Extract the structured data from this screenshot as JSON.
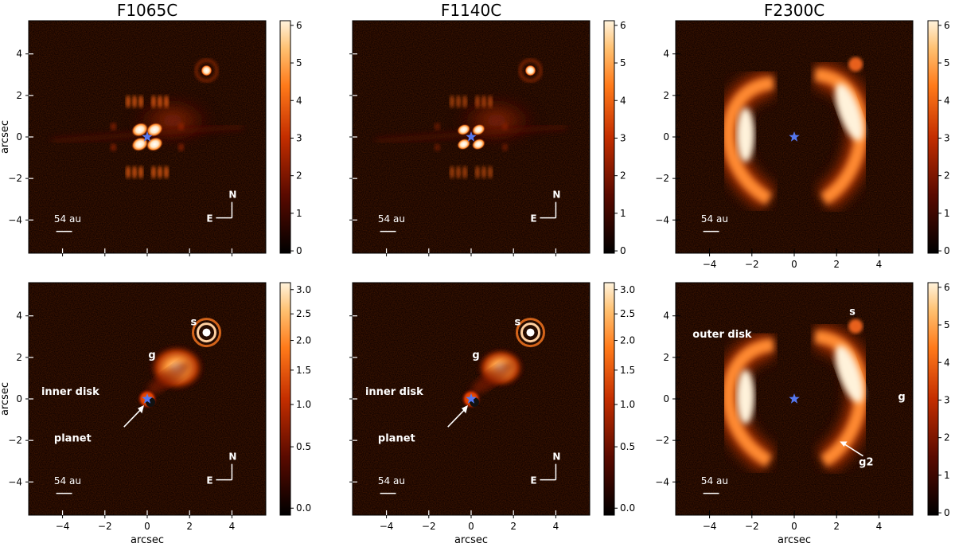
{
  "figure": {
    "panels": [
      {
        "id": "p11",
        "column_title": "F1065C",
        "cbar_ticks": [
          "0",
          "1",
          "2",
          "3",
          "4",
          "5",
          "6"
        ],
        "x_ticks": [],
        "y_ticks": [
          "4",
          "2",
          "0",
          "−2",
          "−4"
        ],
        "xlabel": "",
        "ylabel": "arcsec",
        "scale_bar": "54 au",
        "compass": {
          "n": "N",
          "e": "E"
        },
        "annotations": []
      },
      {
        "id": "p12",
        "column_title": "F1140C",
        "cbar_ticks": [
          "0",
          "1",
          "2",
          "3",
          "4",
          "5",
          "6"
        ],
        "x_ticks": [],
        "y_ticks": [],
        "xlabel": "",
        "ylabel": "",
        "scale_bar": "54 au",
        "compass": {
          "n": "N",
          "e": "E"
        },
        "annotations": []
      },
      {
        "id": "p13",
        "column_title": "F2300C",
        "cbar_ticks": [
          "0",
          "1",
          "2",
          "3",
          "4",
          "5",
          "6"
        ],
        "x_ticks": [
          "−4",
          "−2",
          "0",
          "2",
          "4"
        ],
        "y_ticks": [
          "4",
          "2",
          "0",
          "−2",
          "−4"
        ],
        "xlabel": "",
        "ylabel": "",
        "scale_bar": "54 au",
        "compass": null,
        "annotations": []
      },
      {
        "id": "p21",
        "column_title": "",
        "cbar_ticks": [
          "0.0",
          "0.5",
          "1.0",
          "1.5",
          "2.0",
          "2.5",
          "3.0"
        ],
        "x_ticks": [
          "−4",
          "−2",
          "0",
          "2",
          "4"
        ],
        "y_ticks": [
          "4",
          "2",
          "0",
          "−2",
          "−4"
        ],
        "xlabel": "arcsec",
        "ylabel": "arcsec",
        "scale_bar": "54 au",
        "compass": {
          "n": "N",
          "e": "E"
        },
        "annotations": [
          "s",
          "g",
          "inner disk",
          "planet"
        ]
      },
      {
        "id": "p22",
        "column_title": "",
        "cbar_ticks": [
          "0.0",
          "0.5",
          "1.0",
          "1.5",
          "2.0",
          "2.5",
          "3.0"
        ],
        "x_ticks": [
          "−4",
          "−2",
          "0",
          "2",
          "4"
        ],
        "y_ticks": [],
        "xlabel": "arcsec",
        "ylabel": "",
        "scale_bar": "54 au",
        "compass": {
          "n": "N",
          "e": "E"
        },
        "annotations": [
          "s",
          "g",
          "inner disk",
          "planet"
        ]
      },
      {
        "id": "p23",
        "column_title": "",
        "cbar_ticks": [
          "0",
          "1",
          "2",
          "3",
          "4",
          "5",
          "6"
        ],
        "x_ticks": [
          "−4",
          "−2",
          "0",
          "2",
          "4"
        ],
        "y_ticks": [
          "4",
          "2",
          "0",
          "−2",
          "−4"
        ],
        "xlabel": "arcsec",
        "ylabel": "",
        "scale_bar": "54 au",
        "compass": null,
        "annotations": [
          "s",
          "outer disk",
          "g",
          "g2"
        ]
      }
    ],
    "colors": {
      "star": "#5577ee",
      "cmap_low": "#000000",
      "cmap_mid": "#c42e00",
      "cmap_high": "#fff3dc"
    }
  }
}
